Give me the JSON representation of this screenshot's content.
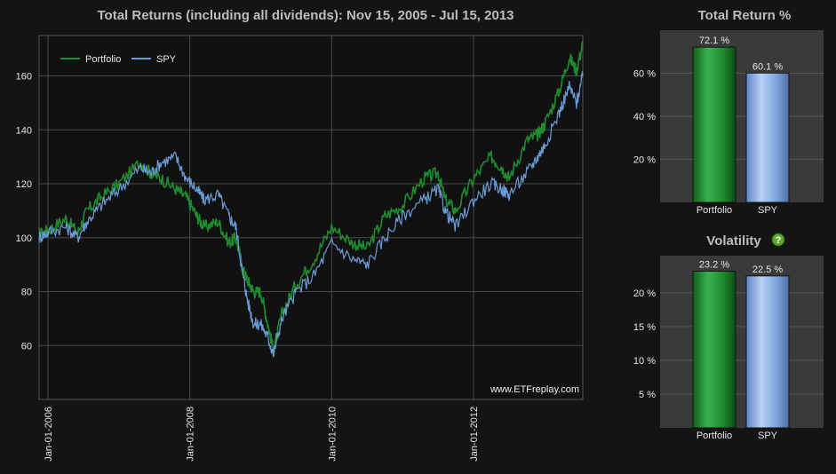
{
  "chart_data": [
    {
      "type": "line",
      "title": "Total Returns (including all dividends): Nov 15, 2005 - Jul 15, 2013",
      "xlabel": "",
      "ylabel": "",
      "x_tick_labels": [
        "Jan-01-2006",
        "Jan-01-2008",
        "Jan-01-2010",
        "Jan-01-2012"
      ],
      "x_tick_years": [
        2006,
        2008,
        2010,
        2012
      ],
      "y_ticks": [
        60,
        80,
        100,
        120,
        140,
        160
      ],
      "xlim": [
        2005.875,
        2013.54
      ],
      "ylim": [
        40,
        175
      ],
      "grid": true,
      "legend": "top-left",
      "watermark": "www.ETFreplay.com",
      "x": [
        2005.875,
        2006.0,
        2006.25,
        2006.42,
        2006.55,
        2006.75,
        2007.0,
        2007.3,
        2007.45,
        2007.6,
        2007.8,
        2007.95,
        2008.1,
        2008.2,
        2008.4,
        2008.55,
        2008.65,
        2008.75,
        2008.82,
        2008.9,
        2009.0,
        2009.1,
        2009.18,
        2009.3,
        2009.5,
        2009.75,
        2010.0,
        2010.3,
        2010.5,
        2010.75,
        2011.0,
        2011.3,
        2011.5,
        2011.6,
        2011.75,
        2012.0,
        2012.25,
        2012.4,
        2012.5,
        2012.75,
        2012.9,
        2013.0,
        2013.2,
        2013.35,
        2013.45,
        2013.54
      ],
      "series": [
        {
          "name": "Portfolio",
          "color": "#1e8c2e",
          "values": [
            101,
            103,
            107,
            102,
            110,
            115,
            120,
            128,
            124,
            122,
            118,
            115,
            108,
            104,
            106,
            98,
            100,
            88,
            84,
            80,
            80,
            68,
            58,
            72,
            83,
            92,
            104,
            98,
            96,
            108,
            112,
            122,
            124,
            114,
            110,
            122,
            130,
            126,
            122,
            136,
            138,
            142,
            154,
            167,
            162,
            172
          ]
        },
        {
          "name": "SPY",
          "color": "#6b9bd6",
          "values": [
            100,
            102,
            104,
            100,
            106,
            112,
            118,
            126,
            124,
            128,
            130,
            122,
            118,
            114,
            116,
            108,
            104,
            86,
            76,
            68,
            68,
            63,
            57,
            70,
            80,
            86,
            98,
            92,
            90,
            100,
            108,
            114,
            118,
            110,
            104,
            114,
            120,
            118,
            116,
            124,
            130,
            134,
            146,
            156,
            150,
            160
          ]
        }
      ]
    },
    {
      "type": "bar",
      "title": "Total Return %",
      "categories": [
        "Portfolio",
        "SPY"
      ],
      "values": [
        72.1,
        60.1
      ],
      "value_labels": [
        "72.1 %",
        "60.1 %"
      ],
      "y_ticks": [
        20,
        40,
        60
      ],
      "y_tick_labels": [
        "20 %",
        "40 %",
        "60 %"
      ],
      "ylim": [
        0,
        80
      ],
      "colors": [
        "#1e8c2e",
        "#6b9bd6"
      ]
    },
    {
      "type": "bar",
      "title": "Volatility",
      "title_icon": "help-icon",
      "help_glyph": "?",
      "categories": [
        "Portfolio",
        "SPY"
      ],
      "values": [
        23.2,
        22.5
      ],
      "value_labels": [
        "23.2 %",
        "22.5 %"
      ],
      "y_ticks": [
        5,
        10,
        15,
        20
      ],
      "y_tick_labels": [
        "5 %",
        "10 %",
        "15 %",
        "20 %"
      ],
      "ylim": [
        0,
        25.5
      ],
      "colors": [
        "#1e8c2e",
        "#6b9bd6"
      ]
    }
  ]
}
